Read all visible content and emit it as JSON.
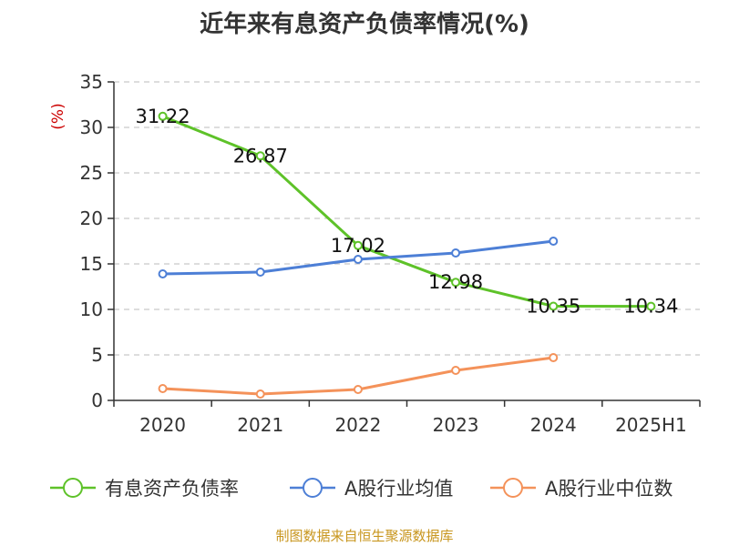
{
  "chart_data": {
    "type": "line",
    "title": "近年来有息资产负债率情况(%)",
    "ylabel": "(%)",
    "xlabel": "",
    "categories": [
      "2020",
      "2021",
      "2022",
      "2023",
      "2024",
      "2025H1"
    ],
    "ylim": [
      0,
      35
    ],
    "yticks": [
      0,
      5,
      10,
      15,
      20,
      25,
      30,
      35
    ],
    "grid": true,
    "legend_position": "bottom",
    "series": [
      {
        "name": "有息资产负债率",
        "color": "#5ec229",
        "values": [
          31.22,
          26.87,
          17.02,
          12.98,
          10.35,
          10.34
        ],
        "labels": [
          "31.22",
          "26.87",
          "17.02",
          "12.98",
          "10.35",
          "10.34"
        ]
      },
      {
        "name": "A股行业均值",
        "color": "#4d7fd6",
        "values": [
          13.9,
          14.1,
          15.5,
          16.2,
          17.5,
          null
        ]
      },
      {
        "name": "A股行业中位数",
        "color": "#f4925a",
        "values": [
          1.3,
          0.7,
          1.2,
          3.3,
          4.7,
          null
        ]
      }
    ]
  },
  "footer": {
    "source": "制图数据来自恒生聚源数据库"
  }
}
